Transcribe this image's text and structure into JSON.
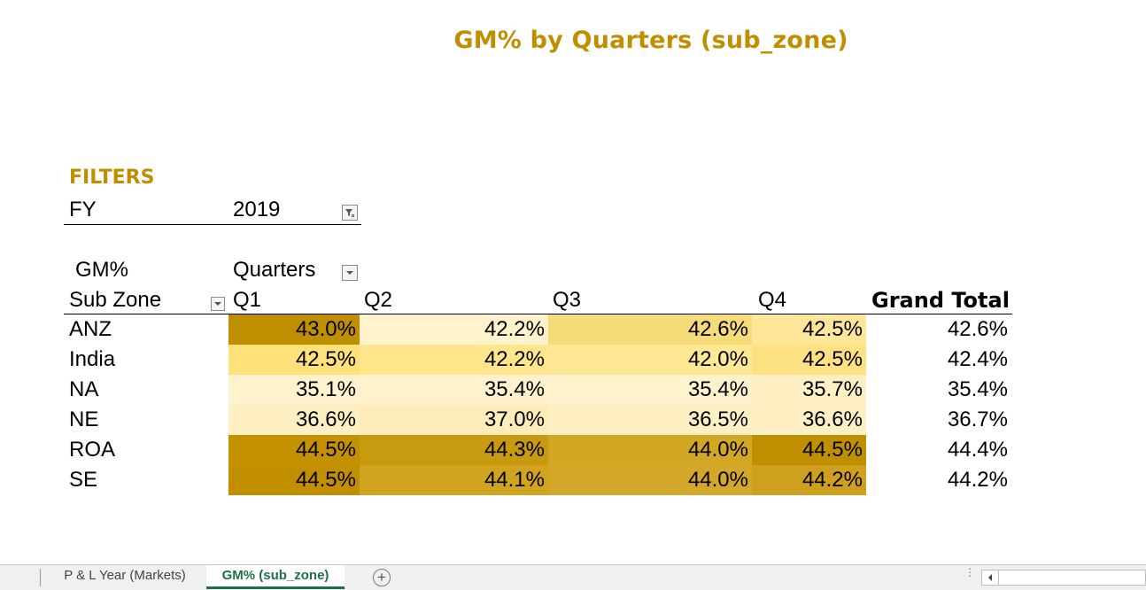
{
  "title": "GM%  by Quarters (sub_zone)",
  "filters": {
    "label": "FILTERS",
    "field": "FY",
    "value": "2019"
  },
  "pivot": {
    "value_field": "GM%",
    "column_field": "Quarters",
    "row_field": "Sub Zone",
    "columns": [
      "Q1",
      "Q2",
      "Q3",
      "Q4"
    ],
    "grand_total_label": "Grand Total",
    "rows": [
      {
        "name": "ANZ",
        "values": [
          "43.0%",
          "42.2%",
          "42.6%",
          "42.5%"
        ],
        "total": "42.6%"
      },
      {
        "name": "India",
        "values": [
          "42.5%",
          "42.2%",
          "42.0%",
          "42.5%"
        ],
        "total": "42.4%"
      },
      {
        "name": "NA",
        "values": [
          "35.1%",
          "35.4%",
          "35.4%",
          "35.7%"
        ],
        "total": "35.4%"
      },
      {
        "name": "NE",
        "values": [
          "36.6%",
          "37.0%",
          "36.5%",
          "36.6%"
        ],
        "total": "36.7%"
      },
      {
        "name": "ROA",
        "values": [
          "44.5%",
          "44.3%",
          "44.0%",
          "44.5%"
        ],
        "total": "44.4%"
      },
      {
        "name": "SE",
        "values": [
          "44.5%",
          "44.1%",
          "44.0%",
          "44.2%"
        ],
        "total": "44.2%"
      }
    ],
    "heat_colors": [
      [
        "#BF8F00",
        "#FFF2CC",
        "#F5DC78",
        "#FFE699"
      ],
      [
        "#FFE17A",
        "#FFE68C",
        "#FFE894",
        "#FDE182"
      ],
      [
        "#FFF2CC",
        "#FFF2CC",
        "#FFF2CC",
        "#FFF0C4"
      ],
      [
        "#FFF0C4",
        "#FEEDB8",
        "#FFF0C4",
        "#FFF0C4"
      ],
      [
        "#C49200",
        "#C89A10",
        "#D1A724",
        "#BF8F00"
      ],
      [
        "#C18F00",
        "#D1A420",
        "#D3A72A",
        "#CEA01E"
      ]
    ]
  },
  "accent_color": "#BF8F00",
  "sheet_tabs": [
    {
      "label": "P & L Year (Markets)",
      "active": false
    },
    {
      "label": "GM% (sub_zone)",
      "active": true
    }
  ],
  "icons": {
    "filter": "filter-funnel-icon",
    "dropdown": "dropdown-arrow-icon",
    "add_sheet": "plus-circle-icon",
    "scroll_left": "scroll-left-arrow-icon"
  }
}
